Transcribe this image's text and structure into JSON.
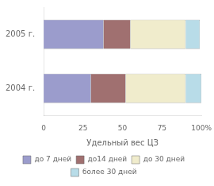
{
  "chart_data": {
    "type": "bar",
    "orientation": "horizontal",
    "stacked": true,
    "categories": [
      "2004 г.",
      "2005 г."
    ],
    "series": [
      {
        "name": "до 7 дней",
        "color": "#9b9ccc",
        "values": [
          30,
          38
        ]
      },
      {
        "name": "до14 дней",
        "color": "#a07070",
        "values": [
          22,
          17
        ]
      },
      {
        "name": "до 30 дней",
        "color": "#f0eccc",
        "values": [
          38,
          35
        ]
      },
      {
        "name": "более 30 дней",
        "color": "#b8dce8",
        "values": [
          10,
          9
        ]
      }
    ],
    "xlabel": "Удельный вес ЦЗ",
    "xlim": [
      0,
      100
    ],
    "xticks": [
      0,
      25,
      50,
      75,
      {
        "value": 100,
        "label": "100%"
      }
    ],
    "grid": false,
    "legend": "bottom"
  }
}
